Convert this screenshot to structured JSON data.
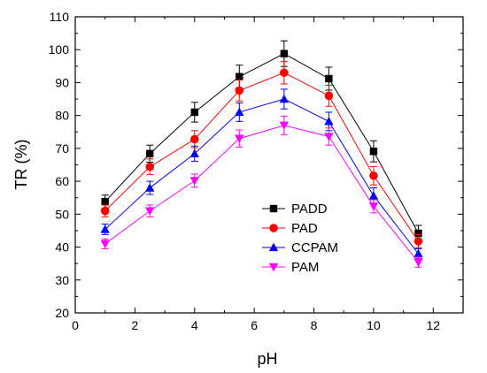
{
  "chart_data": {
    "type": "line",
    "xlabel": "pH",
    "ylabel": "TR (%)",
    "xlim": [
      0,
      13
    ],
    "ylim": [
      20,
      110
    ],
    "xticks": [
      0,
      2,
      4,
      6,
      8,
      10,
      12
    ],
    "yticks": [
      20,
      30,
      40,
      50,
      60,
      70,
      80,
      90,
      100,
      110
    ],
    "grid": false,
    "legend_position": "center",
    "x": [
      1,
      2.5,
      4,
      5.5,
      7,
      8.5,
      10,
      11.5
    ],
    "series": [
      {
        "name": "PADD",
        "marker": "square",
        "color": "#000000",
        "values": [
          53.8,
          68.4,
          81.0,
          91.8,
          98.8,
          91.2,
          69.1,
          44.2
        ],
        "errors": [
          2.0,
          2.6,
          3.0,
          3.5,
          3.9,
          3.5,
          3.2,
          2.4
        ]
      },
      {
        "name": "PAD",
        "marker": "circle",
        "color": "#ff0000",
        "values": [
          51.0,
          64.4,
          72.8,
          87.6,
          93.0,
          86.0,
          61.7,
          41.8
        ],
        "errors": [
          1.8,
          2.4,
          2.6,
          3.2,
          3.4,
          3.2,
          2.8,
          2.0
        ]
      },
      {
        "name": "CCPAM",
        "marker": "triangle-up",
        "color": "#0000ff",
        "values": [
          45.4,
          58.0,
          68.4,
          81.0,
          85.0,
          78.2,
          55.6,
          38.0
        ],
        "errors": [
          1.6,
          2.0,
          2.3,
          2.8,
          3.0,
          2.8,
          2.4,
          1.5
        ]
      },
      {
        "name": "PAM",
        "marker": "triangle-down",
        "color": "#ff00ff",
        "values": [
          41.0,
          51.0,
          60.2,
          73.0,
          77.0,
          73.6,
          52.4,
          35.4
        ],
        "errors": [
          1.5,
          1.8,
          2.0,
          2.6,
          2.8,
          2.6,
          2.0,
          1.5
        ]
      }
    ]
  }
}
